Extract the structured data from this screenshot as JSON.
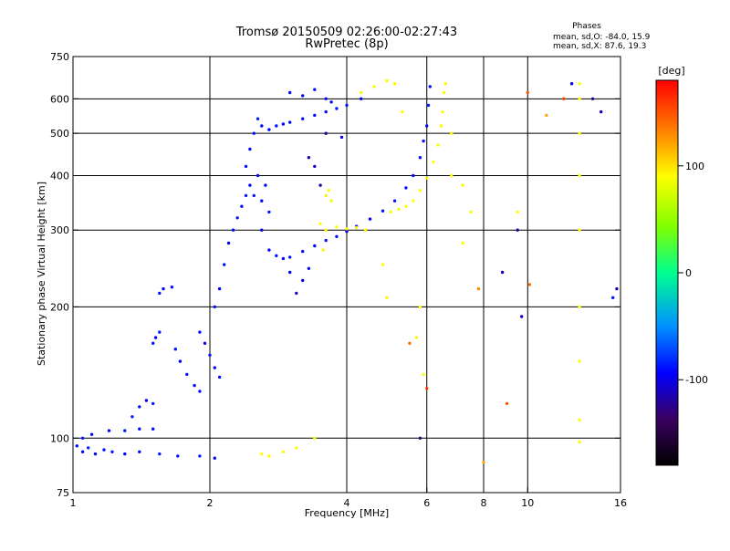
{
  "chart_data": {
    "type": "scatter",
    "title": "Tromsø 20150509 02:26:00-02:27:43",
    "subtitle": "RwPretec (8p)",
    "xlabel": "Frequency [MHz]",
    "ylabel": "Stationary phase Virtual Height [km]",
    "x_scale": "log",
    "y_scale": "log",
    "xlim": [
      1,
      16
    ],
    "ylim": [
      75,
      750
    ],
    "x_ticks": [
      1,
      2,
      4,
      6,
      8,
      10,
      16
    ],
    "x_tick_labels": [
      "1",
      "2",
      "4",
      "6",
      "8",
      "10",
      "16"
    ],
    "y_ticks": [
      75,
      100,
      200,
      300,
      400,
      500,
      600,
      750
    ],
    "y_tick_labels": [
      "75",
      "100",
      "200",
      "300",
      "400",
      "500",
      "600",
      "750"
    ],
    "y_gridlines": [
      100,
      200,
      300,
      400,
      500,
      600
    ],
    "x_gridlines": [
      2,
      4,
      6,
      8,
      10
    ],
    "grid": true,
    "phase_stats": {
      "heading": "Phases",
      "line_o": "mean, sd,O: -84.0, 15.9",
      "line_x": "mean, sd,X:  87.6, 19.3"
    },
    "colorbar": {
      "label": "[deg]",
      "min": -180,
      "max": 180,
      "ticks": [
        100,
        0,
        -100
      ],
      "tick_labels": [
        "100",
        "0",
        "-100"
      ]
    },
    "series": [
      {
        "values": [
          [
            1.02,
            96,
            -90
          ],
          [
            1.05,
            93,
            -95
          ],
          [
            1.08,
            95,
            -85
          ],
          [
            1.12,
            92,
            -100
          ],
          [
            1.17,
            94,
            -90
          ],
          [
            1.22,
            93,
            -88
          ],
          [
            1.3,
            92,
            -95
          ],
          [
            1.4,
            93,
            -92
          ],
          [
            1.55,
            92,
            -85
          ],
          [
            1.7,
            91,
            -90
          ],
          [
            1.9,
            91,
            -88
          ],
          [
            2.05,
            90,
            -92
          ],
          [
            1.05,
            100,
            -85
          ],
          [
            1.1,
            102,
            -90
          ],
          [
            1.2,
            104,
            -95
          ],
          [
            1.3,
            104,
            -88
          ],
          [
            1.4,
            105,
            -92
          ],
          [
            1.5,
            105,
            -90
          ],
          [
            1.35,
            112,
            -85
          ],
          [
            1.4,
            118,
            -90
          ],
          [
            1.45,
            122,
            -95
          ],
          [
            1.5,
            120,
            -88
          ],
          [
            1.5,
            165,
            -90
          ],
          [
            1.52,
            170,
            -95
          ],
          [
            1.55,
            175,
            -85
          ],
          [
            1.55,
            215,
            -90
          ],
          [
            1.58,
            220,
            -92
          ],
          [
            1.65,
            222,
            -88
          ],
          [
            1.68,
            160,
            -90
          ],
          [
            1.72,
            150,
            -95
          ],
          [
            1.78,
            140,
            -88
          ],
          [
            1.85,
            132,
            -92
          ],
          [
            1.9,
            128,
            -90
          ],
          [
            1.9,
            175,
            -90
          ],
          [
            1.95,
            165,
            -95
          ],
          [
            2.0,
            155,
            -88
          ],
          [
            2.05,
            145,
            -92
          ],
          [
            2.1,
            138,
            -90
          ],
          [
            2.05,
            200,
            -90
          ],
          [
            2.1,
            220,
            -95
          ],
          [
            2.15,
            250,
            -88
          ],
          [
            2.2,
            280,
            -92
          ],
          [
            2.25,
            300,
            -90
          ],
          [
            2.3,
            320,
            -85
          ],
          [
            2.35,
            340,
            -90
          ],
          [
            2.4,
            360,
            -88
          ],
          [
            2.45,
            380,
            -95
          ],
          [
            2.4,
            420,
            -90
          ],
          [
            2.45,
            460,
            -92
          ],
          [
            2.5,
            500,
            -88
          ],
          [
            2.55,
            540,
            -85
          ],
          [
            2.6,
            520,
            -90
          ],
          [
            2.7,
            510,
            -95
          ],
          [
            2.8,
            520,
            -88
          ],
          [
            2.9,
            525,
            -92
          ],
          [
            3.0,
            530,
            -90
          ],
          [
            3.2,
            540,
            -88
          ],
          [
            3.4,
            550,
            -92
          ],
          [
            3.6,
            560,
            -90
          ],
          [
            3.8,
            570,
            -85
          ],
          [
            4.0,
            580,
            -90
          ],
          [
            4.3,
            600,
            -95
          ],
          [
            2.6,
            300,
            -100
          ],
          [
            2.7,
            270,
            -95
          ],
          [
            2.8,
            262,
            -90
          ],
          [
            2.9,
            258,
            -92
          ],
          [
            3.0,
            260,
            -88
          ],
          [
            3.2,
            268,
            -90
          ],
          [
            3.4,
            276,
            -92
          ],
          [
            3.6,
            284,
            -88
          ],
          [
            3.8,
            290,
            -90
          ],
          [
            4.0,
            298,
            -95
          ],
          [
            4.2,
            306,
            -88
          ],
          [
            4.5,
            318,
            -92
          ],
          [
            4.8,
            332,
            -90
          ],
          [
            5.1,
            350,
            -88
          ],
          [
            5.4,
            375,
            -92
          ],
          [
            5.6,
            400,
            -90
          ],
          [
            5.8,
            440,
            -88
          ],
          [
            5.9,
            480,
            -92
          ],
          [
            6.0,
            520,
            -90
          ],
          [
            6.05,
            580,
            -88
          ],
          [
            6.1,
            640,
            -92
          ],
          [
            3.0,
            620,
            -90
          ],
          [
            3.2,
            610,
            -95
          ],
          [
            3.4,
            630,
            -88
          ],
          [
            3.6,
            600,
            -92
          ],
          [
            3.7,
            590,
            -100
          ],
          [
            3.4,
            420,
            -110
          ],
          [
            3.5,
            380,
            -120
          ],
          [
            3.3,
            440,
            -115
          ],
          [
            3.6,
            500,
            -120
          ],
          [
            3.9,
            490,
            -100
          ],
          [
            3.2,
            230,
            -100
          ],
          [
            3.1,
            215,
            -110
          ],
          [
            3.0,
            240,
            -95
          ],
          [
            3.3,
            245,
            -100
          ],
          [
            2.5,
            360,
            -90
          ],
          [
            2.6,
            350,
            -92
          ],
          [
            2.7,
            330,
            -88
          ],
          [
            2.55,
            400,
            -90
          ],
          [
            2.65,
            380,
            -95
          ]
        ]
      },
      {
        "values": [
          [
            3.6,
            360,
            95
          ],
          [
            3.65,
            370,
            90
          ],
          [
            3.7,
            350,
            85
          ],
          [
            3.6,
            300,
            92
          ],
          [
            3.8,
            305,
            88
          ],
          [
            4.0,
            302,
            90
          ],
          [
            4.2,
            304,
            92
          ],
          [
            4.4,
            300,
            88
          ],
          [
            3.5,
            310,
            90
          ],
          [
            3.55,
            270,
            85
          ],
          [
            5.0,
            330,
            90
          ],
          [
            5.2,
            335,
            88
          ],
          [
            5.4,
            340,
            92
          ],
          [
            5.6,
            350,
            90
          ],
          [
            5.8,
            370,
            88
          ],
          [
            6.0,
            395,
            92
          ],
          [
            6.2,
            430,
            90
          ],
          [
            6.35,
            470,
            88
          ],
          [
            6.45,
            520,
            92
          ],
          [
            6.5,
            560,
            90
          ],
          [
            6.55,
            620,
            88
          ],
          [
            6.6,
            650,
            92
          ],
          [
            4.3,
            620,
            85
          ],
          [
            4.6,
            640,
            88
          ],
          [
            4.9,
            660,
            90
          ],
          [
            5.1,
            650,
            92
          ],
          [
            5.3,
            560,
            88
          ],
          [
            2.6,
            92,
            90
          ],
          [
            2.7,
            91,
            88
          ],
          [
            2.9,
            93,
            92
          ],
          [
            3.1,
            95,
            90
          ],
          [
            3.4,
            100,
            88
          ],
          [
            13.0,
            200,
            90
          ],
          [
            13.0,
            300,
            92
          ],
          [
            13.0,
            400,
            88
          ],
          [
            13.0,
            500,
            90
          ],
          [
            13.0,
            600,
            92
          ],
          [
            13.0,
            650,
            88
          ],
          [
            13.0,
            150,
            90
          ],
          [
            13.0,
            110,
            88
          ],
          [
            13.0,
            98,
            92
          ],
          [
            6.8,
            400,
            90
          ],
          [
            6.8,
            500,
            92
          ],
          [
            7.5,
            330,
            88
          ],
          [
            9.5,
            330,
            90
          ],
          [
            5.7,
            170,
            85
          ],
          [
            5.9,
            140,
            88
          ],
          [
            5.8,
            200,
            90
          ],
          [
            4.9,
            210,
            92
          ],
          [
            4.8,
            250,
            88
          ],
          [
            7.2,
            280,
            90
          ],
          [
            7.2,
            380,
            92
          ]
        ]
      },
      {
        "values": [
          [
            9.0,
            120,
            150
          ],
          [
            6.0,
            130,
            160
          ],
          [
            5.5,
            165,
            140
          ],
          [
            10.0,
            620,
            145
          ],
          [
            12.0,
            600,
            155
          ],
          [
            8.0,
            88,
            120
          ],
          [
            7.8,
            220,
            130
          ],
          [
            10.1,
            225,
            140
          ],
          [
            11.0,
            550,
            120
          ]
        ]
      },
      {
        "values": [
          [
            14.5,
            560,
            -110
          ],
          [
            13.9,
            600,
            -120
          ],
          [
            12.5,
            650,
            -100
          ],
          [
            15.7,
            220,
            -120
          ],
          [
            9.7,
            190,
            -110
          ],
          [
            15.4,
            210,
            -90
          ],
          [
            8.8,
            240,
            -110
          ],
          [
            9.5,
            300,
            -120
          ],
          [
            5.8,
            100,
            -130
          ]
        ]
      }
    ]
  }
}
